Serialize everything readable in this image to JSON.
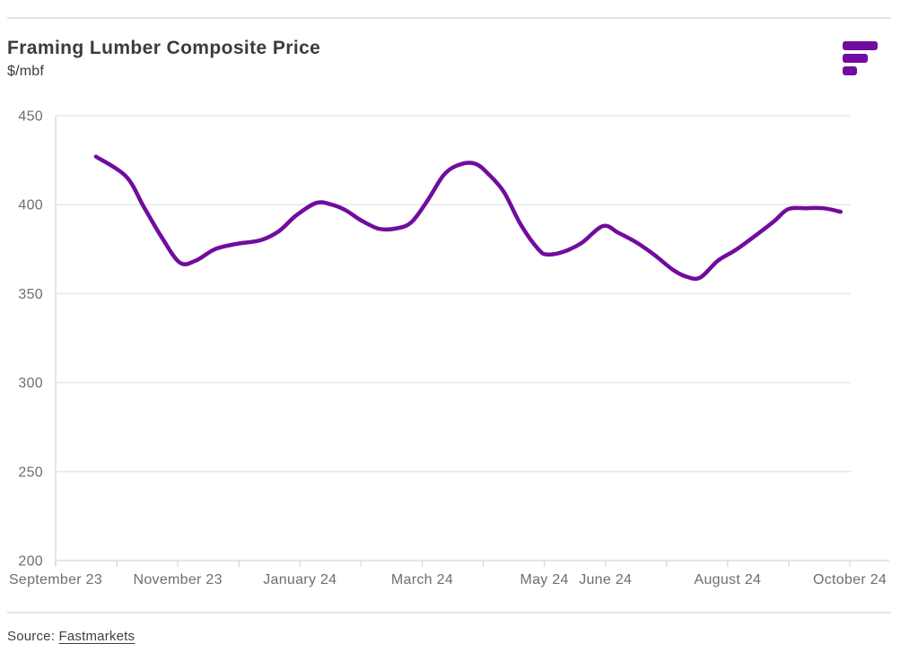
{
  "header": {
    "title": "Framing Lumber Composite Price",
    "subtitle": "$/mbf"
  },
  "logo": {
    "name": "fastmarkets-logo",
    "color": "#710c9e"
  },
  "footer": {
    "source_label": "Source:",
    "source_link": "Fastmarkets"
  },
  "chart_data": {
    "type": "line",
    "title": "Framing Lumber Composite Price",
    "ylabel": "$/mbf",
    "xlabel": "",
    "ylim": [
      200,
      450
    ],
    "y_ticks": [
      450,
      400,
      350,
      300,
      250,
      200
    ],
    "grid": "horizontal",
    "legend": "none",
    "line_color": "#710c9e",
    "x_ticks": {
      "count": 14,
      "labeled": [
        {
          "month_index": 0,
          "label": "September 23"
        },
        {
          "month_index": 2,
          "label": "November 23"
        },
        {
          "month_index": 4,
          "label": "January 24"
        },
        {
          "month_index": 6,
          "label": "March 24"
        },
        {
          "month_index": 8,
          "label": "May 24"
        },
        {
          "month_index": 9,
          "label": "June 24"
        },
        {
          "month_index": 11,
          "label": "August 24"
        },
        {
          "month_index": 13,
          "label": "October 24"
        }
      ]
    },
    "series": [
      {
        "name": "Framing Lumber Composite Price ($/mbf)",
        "points": [
          {
            "date": "2023-09-21",
            "m": 0.66,
            "value": 427
          },
          {
            "date": "2023-10-05",
            "m": 1.15,
            "value": 416
          },
          {
            "date": "2023-10-14",
            "m": 1.44,
            "value": 399
          },
          {
            "date": "2023-10-23",
            "m": 1.73,
            "value": 382
          },
          {
            "date": "2023-11-02",
            "m": 2.03,
            "value": 367.5
          },
          {
            "date": "2023-11-10",
            "m": 2.29,
            "value": 368.5
          },
          {
            "date": "2023-11-20",
            "m": 2.61,
            "value": 375
          },
          {
            "date": "2023-12-01",
            "m": 2.97,
            "value": 378
          },
          {
            "date": "2023-12-12",
            "m": 3.35,
            "value": 380
          },
          {
            "date": "2023-12-21",
            "m": 3.65,
            "value": 385
          },
          {
            "date": "2023-12-31",
            "m": 3.94,
            "value": 394
          },
          {
            "date": "2024-01-10",
            "m": 4.27,
            "value": 401
          },
          {
            "date": "2024-01-17",
            "m": 4.52,
            "value": 400
          },
          {
            "date": "2024-01-24",
            "m": 4.74,
            "value": 397
          },
          {
            "date": "2024-02-01",
            "m": 5.01,
            "value": 391
          },
          {
            "date": "2024-02-10",
            "m": 5.29,
            "value": 386.5
          },
          {
            "date": "2024-02-18",
            "m": 5.55,
            "value": 386.5
          },
          {
            "date": "2024-02-26",
            "m": 5.82,
            "value": 390
          },
          {
            "date": "2024-03-04",
            "m": 6.1,
            "value": 403
          },
          {
            "date": "2024-03-12",
            "m": 6.36,
            "value": 417
          },
          {
            "date": "2024-03-20",
            "m": 6.61,
            "value": 422.5
          },
          {
            "date": "2024-03-28",
            "m": 6.87,
            "value": 423
          },
          {
            "date": "2024-04-04",
            "m": 7.09,
            "value": 417
          },
          {
            "date": "2024-04-11",
            "m": 7.34,
            "value": 407
          },
          {
            "date": "2024-04-19",
            "m": 7.61,
            "value": 389
          },
          {
            "date": "2024-04-28",
            "m": 7.9,
            "value": 375
          },
          {
            "date": "2024-05-03",
            "m": 8.05,
            "value": 372
          },
          {
            "date": "2024-05-10",
            "m": 8.31,
            "value": 373.5
          },
          {
            "date": "2024-05-19",
            "m": 8.61,
            "value": 378.5
          },
          {
            "date": "2024-05-30",
            "m": 8.96,
            "value": 388
          },
          {
            "date": "2024-06-08",
            "m": 9.22,
            "value": 384
          },
          {
            "date": "2024-06-17",
            "m": 9.52,
            "value": 378.5
          },
          {
            "date": "2024-06-26",
            "m": 9.81,
            "value": 371.5
          },
          {
            "date": "2024-07-04",
            "m": 10.1,
            "value": 363.5
          },
          {
            "date": "2024-07-11",
            "m": 10.33,
            "value": 359.5
          },
          {
            "date": "2024-07-18",
            "m": 10.55,
            "value": 359
          },
          {
            "date": "2024-07-27",
            "m": 10.84,
            "value": 368.5
          },
          {
            "date": "2024-08-05",
            "m": 11.13,
            "value": 374.5
          },
          {
            "date": "2024-08-15",
            "m": 11.47,
            "value": 383
          },
          {
            "date": "2024-08-24",
            "m": 11.77,
            "value": 391
          },
          {
            "date": "2024-09-01",
            "m": 11.99,
            "value": 397.5
          },
          {
            "date": "2024-09-09",
            "m": 12.28,
            "value": 398
          },
          {
            "date": "2024-09-18",
            "m": 12.57,
            "value": 398
          },
          {
            "date": "2024-09-27",
            "m": 12.85,
            "value": 396
          }
        ]
      }
    ]
  }
}
